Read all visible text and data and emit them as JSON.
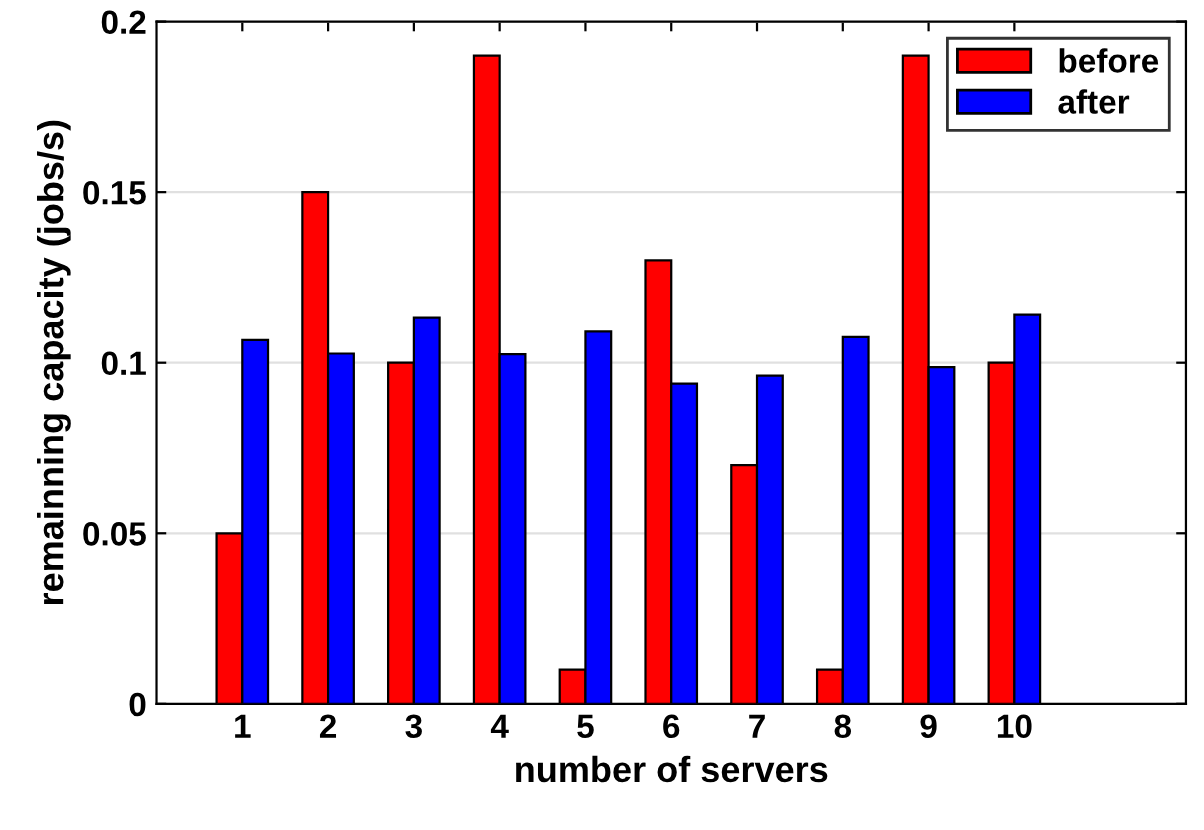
{
  "chart_data": {
    "type": "bar",
    "xlabel": "number of servers",
    "ylabel": "remainning capacity (jobs/s)",
    "x": [
      1,
      2,
      3,
      4,
      5,
      6,
      7,
      8,
      9,
      10
    ],
    "series": [
      {
        "name": "before",
        "color": "#ff0000",
        "values": [
          0.05,
          0.15,
          0.1,
          0.19,
          0.01,
          0.13,
          0.07,
          0.01,
          0.19,
          0.1
        ]
      },
      {
        "name": "after",
        "color": "#0000ff",
        "values": [
          0.1067,
          0.1027,
          0.1132,
          0.1025,
          0.1092,
          0.0939,
          0.0962,
          0.1076,
          0.0987,
          0.1141
        ]
      }
    ],
    "xlim": [
      0,
      12
    ],
    "xticks": [
      1,
      2,
      3,
      4,
      5,
      6,
      7,
      8,
      9,
      10
    ],
    "ylim": [
      0,
      0.2
    ],
    "yticks": [
      0,
      0.05,
      0.1,
      0.15,
      0.2
    ],
    "grid": "y",
    "legend": "top right"
  }
}
